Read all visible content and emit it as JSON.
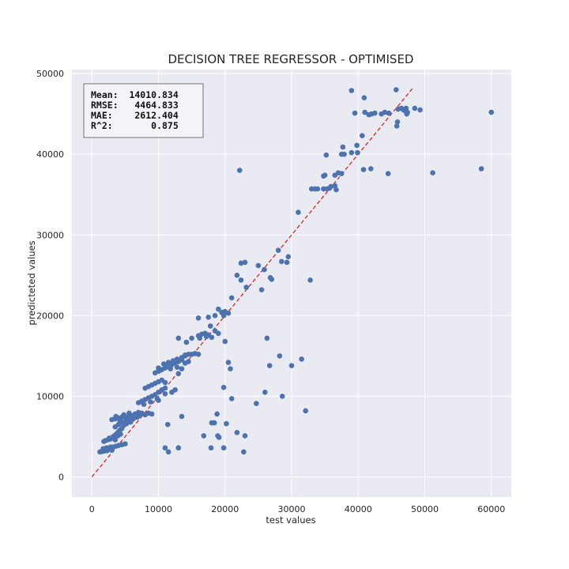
{
  "chart_data": {
    "type": "scatter",
    "title": "DECISION TREE REGRESSOR - OPTIMISED",
    "xlabel": "test values",
    "ylabel": "predicteted values",
    "xlim": [
      -3000,
      63000
    ],
    "ylim": [
      -2500,
      50500
    ],
    "xticks": [
      0,
      10000,
      20000,
      30000,
      40000,
      50000,
      60000
    ],
    "yticks": [
      0,
      10000,
      20000,
      30000,
      40000,
      50000
    ],
    "xtick_labels": [
      "0",
      "10000",
      "20000",
      "30000",
      "40000",
      "50000",
      "60000"
    ],
    "ytick_labels": [
      "0",
      "10000",
      "20000",
      "30000",
      "40000",
      "50000"
    ],
    "grid": true,
    "marker_color": "#4c72b0",
    "reference_line": {
      "style": "dashed",
      "color": "#d62728",
      "from": [
        0,
        0
      ],
      "to": [
        48200,
        48200
      ]
    },
    "stats_box": {
      "position": "top-left",
      "lines": [
        "Mean:  14010.834",
        "RMSE:   4464.833",
        "MAE:    2612.404",
        "R^2:       0.875"
      ]
    },
    "series": [
      {
        "points": [
          [
            1200,
            3100
          ],
          [
            1500,
            3150
          ],
          [
            1800,
            3200
          ],
          [
            2000,
            3400
          ],
          [
            2200,
            3600
          ],
          [
            2500,
            3500
          ],
          [
            2800,
            3700
          ],
          [
            3000,
            3300
          ],
          [
            1700,
            3500
          ],
          [
            2300,
            3250
          ],
          [
            2000,
            4500
          ],
          [
            2400,
            4600
          ],
          [
            2800,
            4700
          ],
          [
            3200,
            4900
          ],
          [
            3500,
            4600
          ],
          [
            1800,
            4400
          ],
          [
            2600,
            4800
          ],
          [
            3200,
            5000
          ],
          [
            3500,
            5200
          ],
          [
            3800,
            5400
          ],
          [
            4000,
            5600
          ],
          [
            4200,
            5800
          ],
          [
            4500,
            6000
          ],
          [
            4300,
            5300
          ],
          [
            3900,
            5100
          ],
          [
            3500,
            6200
          ],
          [
            4000,
            6500
          ],
          [
            4500,
            6700
          ],
          [
            5000,
            6900
          ],
          [
            5500,
            7000
          ],
          [
            6000,
            7100
          ],
          [
            4800,
            6400
          ],
          [
            5200,
            6600
          ],
          [
            5800,
            6800
          ],
          [
            3500,
            7200
          ],
          [
            4000,
            7300
          ],
          [
            4500,
            7400
          ],
          [
            5000,
            7500
          ],
          [
            6000,
            7600
          ],
          [
            6500,
            7800
          ],
          [
            7000,
            8000
          ],
          [
            7500,
            7900
          ],
          [
            6200,
            7200
          ],
          [
            5400,
            7300
          ],
          [
            3000,
            7100
          ],
          [
            3600,
            7500
          ],
          [
            4200,
            7000
          ],
          [
            4800,
            7700
          ],
          [
            5600,
            7900
          ],
          [
            6800,
            7400
          ],
          [
            7200,
            7600
          ],
          [
            8000,
            7700
          ],
          [
            8500,
            7900
          ],
          [
            9000,
            7800
          ],
          [
            3200,
            3700
          ],
          [
            3600,
            3800
          ],
          [
            4000,
            3900
          ],
          [
            4500,
            4000
          ],
          [
            5000,
            4100
          ],
          [
            7000,
            9200
          ],
          [
            7500,
            9400
          ],
          [
            8000,
            9600
          ],
          [
            8500,
            9800
          ],
          [
            9000,
            10000
          ],
          [
            9500,
            10200
          ],
          [
            10000,
            10500
          ],
          [
            10500,
            10800
          ],
          [
            11000,
            11000
          ],
          [
            7800,
            9000
          ],
          [
            8800,
            9300
          ],
          [
            9800,
            9700
          ],
          [
            8000,
            11000
          ],
          [
            8500,
            11200
          ],
          [
            9000,
            11400
          ],
          [
            9500,
            11600
          ],
          [
            10000,
            11800
          ],
          [
            10500,
            12000
          ],
          [
            11000,
            11700
          ],
          [
            9500,
            12900
          ],
          [
            10000,
            13100
          ],
          [
            10500,
            13300
          ],
          [
            11000,
            13500
          ],
          [
            11500,
            13700
          ],
          [
            12000,
            13900
          ],
          [
            12500,
            14100
          ],
          [
            13000,
            14300
          ],
          [
            13500,
            14500
          ],
          [
            10200,
            13200
          ],
          [
            11200,
            13800
          ],
          [
            12200,
            14200
          ],
          [
            11800,
            13400
          ],
          [
            12800,
            13600
          ],
          [
            10000,
            13500
          ],
          [
            10800,
            14000
          ],
          [
            11500,
            14200
          ],
          [
            12200,
            14400
          ],
          [
            12800,
            14600
          ],
          [
            13500,
            14800
          ],
          [
            14000,
            15000
          ],
          [
            14500,
            15200
          ],
          [
            10000,
            9500
          ],
          [
            11000,
            10300
          ],
          [
            12000,
            10500
          ],
          [
            12500,
            10800
          ],
          [
            13000,
            12800
          ],
          [
            13500,
            13400
          ],
          [
            14000,
            14100
          ],
          [
            14500,
            14300
          ],
          [
            14000,
            15100
          ],
          [
            15000,
            15200
          ],
          [
            15500,
            15300
          ],
          [
            16000,
            15200
          ],
          [
            14200,
            16700
          ],
          [
            15000,
            17200
          ],
          [
            16000,
            17500
          ],
          [
            16500,
            17700
          ],
          [
            17000,
            17800
          ],
          [
            17500,
            17600
          ],
          [
            17200,
            17400
          ],
          [
            18000,
            17300
          ],
          [
            18500,
            18100
          ],
          [
            19000,
            17800
          ],
          [
            16000,
            19700
          ],
          [
            17500,
            19800
          ],
          [
            18500,
            20000
          ],
          [
            19000,
            20800
          ],
          [
            19500,
            20400
          ],
          [
            20000,
            20500
          ],
          [
            20500,
            20300
          ],
          [
            19800,
            20000
          ],
          [
            17800,
            18700
          ],
          [
            16200,
            17200
          ],
          [
            13000,
            17200
          ],
          [
            20000,
            16800
          ],
          [
            20500,
            14200
          ],
          [
            20800,
            13400
          ],
          [
            21000,
            9700
          ],
          [
            19800,
            11100
          ],
          [
            18800,
            7800
          ],
          [
            18400,
            6700
          ],
          [
            18900,
            5100
          ],
          [
            19100,
            4900
          ],
          [
            20200,
            6600
          ],
          [
            21800,
            5500
          ],
          [
            23000,
            5100
          ],
          [
            19800,
            3600
          ],
          [
            17900,
            3600
          ],
          [
            22800,
            3100
          ],
          [
            11000,
            3600
          ],
          [
            11500,
            3100
          ],
          [
            13000,
            3600
          ],
          [
            13500,
            7500
          ],
          [
            11400,
            6500
          ],
          [
            16800,
            5100
          ],
          [
            18000,
            6700
          ],
          [
            21000,
            22200
          ],
          [
            21800,
            25000
          ],
          [
            22400,
            24400
          ],
          [
            22400,
            26500
          ],
          [
            23000,
            26600
          ],
          [
            25000,
            26200
          ],
          [
            25500,
            23200
          ],
          [
            25900,
            25700
          ],
          [
            26800,
            24700
          ],
          [
            27000,
            24500
          ],
          [
            23200,
            23500
          ],
          [
            28000,
            28100
          ],
          [
            28500,
            26700
          ],
          [
            29300,
            26600
          ],
          [
            29500,
            27300
          ],
          [
            31000,
            32800
          ],
          [
            32800,
            24400
          ],
          [
            22200,
            38000
          ],
          [
            24700,
            9100
          ],
          [
            26000,
            10500
          ],
          [
            26300,
            17200
          ],
          [
            26700,
            13800
          ],
          [
            28200,
            15000
          ],
          [
            28600,
            10000
          ],
          [
            30000,
            13800
          ],
          [
            31500,
            14600
          ],
          [
            32100,
            8200
          ],
          [
            33000,
            35700
          ],
          [
            33500,
            35700
          ],
          [
            33900,
            35700
          ],
          [
            34800,
            35700
          ],
          [
            35300,
            35700
          ],
          [
            35700,
            35800
          ],
          [
            35900,
            36000
          ],
          [
            36500,
            36100
          ],
          [
            36700,
            35600
          ],
          [
            37000,
            37700
          ],
          [
            37500,
            37600
          ],
          [
            36500,
            37400
          ],
          [
            34800,
            37300
          ],
          [
            35000,
            37400
          ],
          [
            35200,
            39900
          ],
          [
            37500,
            40000
          ],
          [
            37900,
            40000
          ],
          [
            37700,
            40900
          ],
          [
            39000,
            40200
          ],
          [
            39900,
            40200
          ],
          [
            39800,
            41100
          ],
          [
            40600,
            42300
          ],
          [
            40800,
            38100
          ],
          [
            41000,
            45200
          ],
          [
            41600,
            44900
          ],
          [
            42000,
            45000
          ],
          [
            42500,
            45100
          ],
          [
            43500,
            45000
          ],
          [
            44000,
            45200
          ],
          [
            44600,
            45100
          ],
          [
            40900,
            47000
          ],
          [
            41900,
            38200
          ],
          [
            39000,
            47900
          ],
          [
            39500,
            45100
          ],
          [
            44500,
            37600
          ],
          [
            45800,
            43500
          ],
          [
            45900,
            44000
          ],
          [
            46000,
            45600
          ],
          [
            46500,
            45700
          ],
          [
            46800,
            45500
          ],
          [
            47200,
            45700
          ],
          [
            47300,
            45000
          ],
          [
            47400,
            45200
          ],
          [
            47000,
            45400
          ],
          [
            48500,
            45700
          ],
          [
            49300,
            45500
          ],
          [
            45700,
            48000
          ],
          [
            51200,
            37700
          ],
          [
            58500,
            38200
          ],
          [
            60000,
            45200
          ]
        ]
      }
    ]
  }
}
